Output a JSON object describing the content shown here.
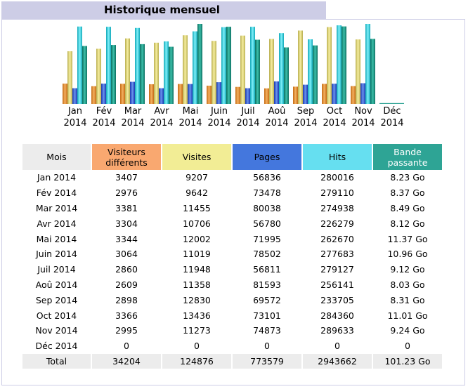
{
  "title": "Historique mensuel",
  "colors": {
    "visiteurs": "#f9a870",
    "visites": "#f2ed95",
    "pages": "#4477dd",
    "hits": "#66dff0",
    "bande": "#2ea495"
  },
  "table": {
    "headers": [
      "Mois",
      "Visiteurs différents",
      "Visites",
      "Pages",
      "Hits",
      "Bande passante"
    ],
    "rows": [
      [
        "Jan 2014",
        "3407",
        "9207",
        "56836",
        "280016",
        "8.23 Go"
      ],
      [
        "Fév 2014",
        "2976",
        "9642",
        "73478",
        "279110",
        "8.37 Go"
      ],
      [
        "Mar 2014",
        "3381",
        "11455",
        "80038",
        "274938",
        "8.49 Go"
      ],
      [
        "Avr 2014",
        "3304",
        "10706",
        "56780",
        "226279",
        "8.12 Go"
      ],
      [
        "Mai 2014",
        "3344",
        "12002",
        "71995",
        "262670",
        "11.37 Go"
      ],
      [
        "Juin 2014",
        "3064",
        "11019",
        "78502",
        "277683",
        "10.96 Go"
      ],
      [
        "Juil 2014",
        "2860",
        "11948",
        "56811",
        "279127",
        "9.12 Go"
      ],
      [
        "Aoû 2014",
        "2609",
        "11358",
        "81593",
        "256141",
        "8.03 Go"
      ],
      [
        "Sep 2014",
        "2898",
        "12830",
        "69572",
        "233705",
        "8.31 Go"
      ],
      [
        "Oct 2014",
        "3366",
        "13436",
        "73101",
        "284360",
        "11.01 Go"
      ],
      [
        "Nov 2014",
        "2995",
        "11273",
        "74873",
        "289633",
        "9.24 Go"
      ],
      [
        "Déc 2014",
        "0",
        "0",
        "0",
        "0",
        "0"
      ]
    ],
    "total": [
      "Total",
      "34204",
      "124876",
      "773579",
      "2943662",
      "101.23 Go"
    ]
  },
  "chart_data": {
    "type": "bar",
    "categories": [
      "Jan 2014",
      "Fév 2014",
      "Mar 2014",
      "Avr 2014",
      "Mai 2014",
      "Juin 2014",
      "Juil 2014",
      "Aoû 2014",
      "Sep 2014",
      "Oct 2014",
      "Nov 2014",
      "Déc 2014"
    ],
    "month_labels": [
      [
        "Jan",
        "2014"
      ],
      [
        "Fév",
        "2014"
      ],
      [
        "Mar",
        "2014"
      ],
      [
        "Avr",
        "2014"
      ],
      [
        "Mai",
        "2014"
      ],
      [
        "Juin",
        "2014"
      ],
      [
        "Juil",
        "2014"
      ],
      [
        "Aoû",
        "2014"
      ],
      [
        "Sep",
        "2014"
      ],
      [
        "Oct",
        "2014"
      ],
      [
        "Nov",
        "2014"
      ],
      [
        "Déc",
        "2014"
      ]
    ],
    "series": [
      {
        "name": "Visiteurs différents",
        "values": [
          3407,
          2976,
          3381,
          3304,
          3344,
          3064,
          2860,
          2609,
          2898,
          3366,
          2995,
          0
        ]
      },
      {
        "name": "Visites",
        "values": [
          9207,
          9642,
          11455,
          10706,
          12002,
          11019,
          11948,
          11358,
          12830,
          13436,
          11273,
          0
        ]
      },
      {
        "name": "Pages",
        "values": [
          56836,
          73478,
          80038,
          56780,
          71995,
          78502,
          56811,
          81593,
          69572,
          73101,
          74873,
          0
        ]
      },
      {
        "name": "Hits",
        "values": [
          280016,
          279110,
          274938,
          226279,
          262670,
          277683,
          279127,
          256141,
          233705,
          284360,
          289633,
          0
        ]
      },
      {
        "name": "Bande passante",
        "values": [
          8.23,
          8.37,
          8.49,
          8.12,
          11.37,
          10.96,
          9.12,
          8.03,
          8.31,
          11.01,
          9.24,
          0
        ]
      }
    ]
  }
}
